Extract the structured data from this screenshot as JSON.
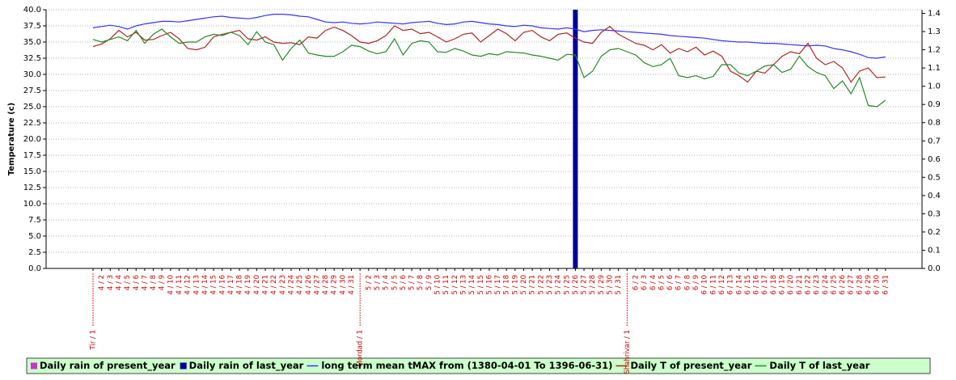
{
  "chart_data": {
    "type": "line",
    "y_label": "Temperature (c)",
    "categories": [
      "Tir / 1",
      "4 / 2",
      "4 / 3",
      "4 / 4",
      "4 / 5",
      "4 / 6",
      "4 / 7",
      "4 / 8",
      "4 / 9",
      "4 / 10",
      "4 / 11",
      "4 / 12",
      "4 / 13",
      "4 / 14",
      "4 / 15",
      "4 / 16",
      "4 / 17",
      "4 / 18",
      "4 / 19",
      "4 / 20",
      "4 / 21",
      "4 / 22",
      "4 / 23",
      "4 / 24",
      "4 / 25",
      "4 / 26",
      "4 / 27",
      "4 / 28",
      "4 / 29",
      "4 / 30",
      "4 / 31",
      "Mordad / 1",
      "5 / 2",
      "5 / 3",
      "5 / 4",
      "5 / 5",
      "5 / 6",
      "5 / 7",
      "5 / 8",
      "5 / 9",
      "5 / 10",
      "5 / 11",
      "5 / 12",
      "5 / 13",
      "5 / 14",
      "5 / 15",
      "5 / 16",
      "5 / 17",
      "5 / 18",
      "5 / 19",
      "5 / 20",
      "5 / 21",
      "5 / 22",
      "5 / 23",
      "5 / 24",
      "5 / 25",
      "5 / 26",
      "5 / 27",
      "5 / 28",
      "5 / 29",
      "5 / 30",
      "5 / 31",
      "Shahrivar / 1",
      "6 / 2",
      "6 / 3",
      "6 / 4",
      "6 / 5",
      "6 / 6",
      "6 / 7",
      "6 / 8",
      "6 / 9",
      "6 / 10",
      "6 / 11",
      "6 / 12",
      "6 / 13",
      "6 / 14",
      "6 / 15",
      "6 / 16",
      "6 / 17",
      "6 / 18",
      "6 / 19",
      "6 / 20",
      "6 / 21",
      "6 / 22",
      "6 / 23",
      "6 / 24",
      "6 / 25",
      "6 / 26",
      "6 / 27",
      "6 / 28",
      "6 / 29",
      "6 / 30",
      "6 / 31"
    ],
    "series": [
      {
        "name": "Daily rain of present_year",
        "color": "#cc33cc",
        "type": "bar",
        "axis": "y2",
        "values": [
          0,
          0,
          0,
          0,
          0,
          0,
          0,
          0,
          0,
          0,
          0,
          0,
          0,
          0,
          0,
          0,
          0,
          0,
          0,
          0,
          0,
          0,
          0,
          0,
          0,
          0,
          0,
          0,
          0,
          0,
          0,
          0,
          0,
          0,
          0,
          0,
          0,
          0,
          0,
          0,
          0,
          0,
          0,
          0,
          0,
          0,
          0,
          0,
          0,
          0,
          0,
          0,
          0,
          0,
          0,
          0,
          0,
          0,
          0,
          0,
          0,
          0,
          0,
          0,
          0,
          0,
          0,
          0,
          0,
          0,
          0,
          0,
          0,
          0,
          0,
          0,
          0,
          0,
          0,
          0,
          0,
          0,
          0,
          0,
          0,
          0,
          0,
          0,
          0,
          0,
          0,
          0,
          0
        ]
      },
      {
        "name": "Daily rain of last_year",
        "color": "#000099",
        "type": "bar",
        "axis": "y2",
        "values": [
          0,
          0,
          0,
          0,
          0,
          0,
          0,
          0,
          0,
          0,
          0,
          0,
          0,
          0,
          0,
          0,
          0,
          0,
          0,
          0,
          0,
          0,
          0,
          0,
          0,
          0,
          0,
          0,
          0,
          0,
          0,
          0,
          0,
          0,
          0,
          0,
          0,
          0,
          0,
          0,
          0,
          0,
          0,
          0,
          0,
          0,
          0,
          0,
          0,
          0,
          0,
          0,
          0,
          0,
          0,
          0,
          1.42,
          0,
          0,
          0,
          0,
          0,
          0,
          0,
          0,
          0,
          0,
          0,
          0,
          0,
          0,
          0,
          0,
          0,
          0,
          0,
          0,
          0,
          0,
          0,
          0,
          0,
          0,
          0,
          0,
          0,
          0,
          0,
          0,
          0,
          0,
          0,
          0
        ]
      },
      {
        "name": "long term mean tMAX from (1380-04-01 To 1396-06-31)",
        "color": "#3333ff",
        "type": "line",
        "values": [
          37.2,
          37.4,
          37.6,
          37.4,
          37.0,
          37.5,
          37.8,
          38.0,
          38.2,
          38.2,
          38.1,
          38.3,
          38.5,
          38.7,
          38.9,
          39.0,
          38.8,
          38.7,
          38.6,
          38.8,
          39.1,
          39.3,
          39.3,
          39.2,
          39.0,
          38.9,
          38.5,
          38.1,
          38.0,
          38.1,
          37.9,
          37.8,
          37.9,
          38.1,
          38.0,
          37.9,
          37.8,
          38.0,
          38.1,
          38.2,
          37.9,
          37.7,
          37.8,
          38.1,
          38.2,
          38.0,
          37.8,
          37.7,
          37.5,
          37.4,
          37.6,
          37.5,
          37.2,
          37.1,
          37.0,
          37.2,
          37.0,
          36.6,
          36.8,
          36.9,
          36.8,
          36.7,
          36.6,
          36.5,
          36.4,
          36.3,
          36.2,
          36.0,
          35.9,
          35.8,
          35.7,
          35.6,
          35.4,
          35.2,
          35.1,
          35.0,
          35.0,
          34.9,
          34.8,
          34.8,
          34.7,
          34.6,
          34.5,
          34.4,
          34.5,
          34.4,
          34.0,
          33.8,
          33.5,
          33.1,
          32.6,
          32.5,
          32.7
        ]
      },
      {
        "name": "Daily T of present_year",
        "color": "#b22222",
        "type": "line",
        "values": [
          34.3,
          34.7,
          35.5,
          36.8,
          35.8,
          36.5,
          35.3,
          35.4,
          36.0,
          36.5,
          35.5,
          34.0,
          33.8,
          34.2,
          35.8,
          36.2,
          36.5,
          36.8,
          35.5,
          35.3,
          35.8,
          35.0,
          34.8,
          34.9,
          34.6,
          35.8,
          35.6,
          36.8,
          37.3,
          36.8,
          36.0,
          35.0,
          34.8,
          35.2,
          36.0,
          37.5,
          36.8,
          37.0,
          36.3,
          36.5,
          35.8,
          35.0,
          35.5,
          36.2,
          36.4,
          35.0,
          36.0,
          37.0,
          36.3,
          35.2,
          36.5,
          36.8,
          35.8,
          35.2,
          36.2,
          36.4,
          35.6,
          35.0,
          34.8,
          36.5,
          37.4,
          36.2,
          35.5,
          34.8,
          34.5,
          33.8,
          34.6,
          33.3,
          34.0,
          33.5,
          34.2,
          33.0,
          33.6,
          32.8,
          30.5,
          29.8,
          28.8,
          30.5,
          30.2,
          31.5,
          32.8,
          33.5,
          33.2,
          34.8,
          32.5,
          31.5,
          32.0,
          31.0,
          28.8,
          30.5,
          31.0,
          29.5,
          29.6
        ]
      },
      {
        "name": "Daily T of last_year",
        "color": "#228b22",
        "type": "line",
        "values": [
          35.4,
          35.0,
          35.4,
          35.8,
          35.2,
          36.8,
          34.8,
          36.2,
          37.0,
          35.8,
          34.8,
          35.0,
          35.0,
          35.8,
          36.2,
          36.0,
          36.5,
          36.0,
          34.6,
          36.6,
          35.0,
          34.6,
          32.2,
          34.0,
          35.3,
          33.3,
          33.0,
          32.8,
          32.8,
          33.5,
          34.5,
          34.3,
          33.6,
          33.2,
          33.5,
          35.5,
          33.0,
          34.8,
          35.2,
          35.0,
          33.5,
          33.4,
          34.0,
          33.6,
          33.0,
          32.8,
          33.2,
          33.0,
          33.5,
          33.4,
          33.3,
          33.0,
          32.8,
          32.5,
          32.2,
          33.1,
          33.0,
          29.5,
          30.5,
          32.8,
          33.8,
          34.0,
          33.5,
          33.0,
          31.8,
          31.2,
          31.5,
          32.5,
          29.8,
          29.5,
          29.8,
          29.3,
          29.7,
          31.5,
          31.5,
          30.2,
          29.8,
          30.5,
          31.3,
          31.5,
          30.3,
          30.8,
          32.8,
          31.2,
          30.3,
          29.8,
          27.8,
          29.0,
          27.0,
          29.5,
          25.2,
          25.0,
          26.0
        ]
      }
    ],
    "ylim": [
      0,
      40
    ],
    "yticks": [
      {
        "value": 0,
        "label": "0.0"
      },
      2.5,
      {
        "value": 5,
        "label": "5.0"
      },
      7.5,
      {
        "value": 10,
        "label": "10.0"
      },
      12.5,
      {
        "value": 15,
        "label": "15.0"
      },
      17.5,
      {
        "value": 20,
        "label": "20.0"
      },
      22.5,
      {
        "value": 25,
        "label": "25.0"
      },
      27.5,
      {
        "value": 30,
        "label": "30.0"
      },
      32.5,
      {
        "value": 35,
        "label": "35.0"
      },
      37.5,
      {
        "value": 40,
        "label": "40.0"
      }
    ],
    "y2lim": [
      0,
      1.42
    ],
    "y2ticks": [
      {
        "value": 0,
        "label": "0.0"
      },
      0.1,
      0.2,
      0.3,
      0.4,
      0.5,
      0.6,
      0.7,
      0.8,
      0.9,
      {
        "value": 1,
        "label": "1.0"
      },
      1.1,
      1.2,
      1.3,
      1.4
    ],
    "grid": true,
    "legend": "bottom"
  }
}
